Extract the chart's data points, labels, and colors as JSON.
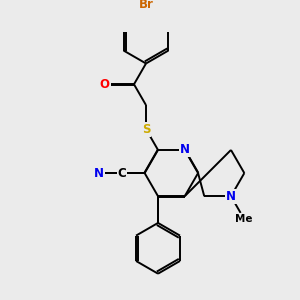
{
  "background_color": "#ebebeb",
  "figsize": [
    3.0,
    3.0
  ],
  "dpi": 100,
  "bond_color": "#000000",
  "bond_lw": 1.4,
  "colors": {
    "Br": "#cc6600",
    "O": "#ff0000",
    "S": "#ccaa00",
    "N": "#0000ee",
    "C": "#000000",
    "default": "#000000"
  },
  "font_size": 8.5
}
